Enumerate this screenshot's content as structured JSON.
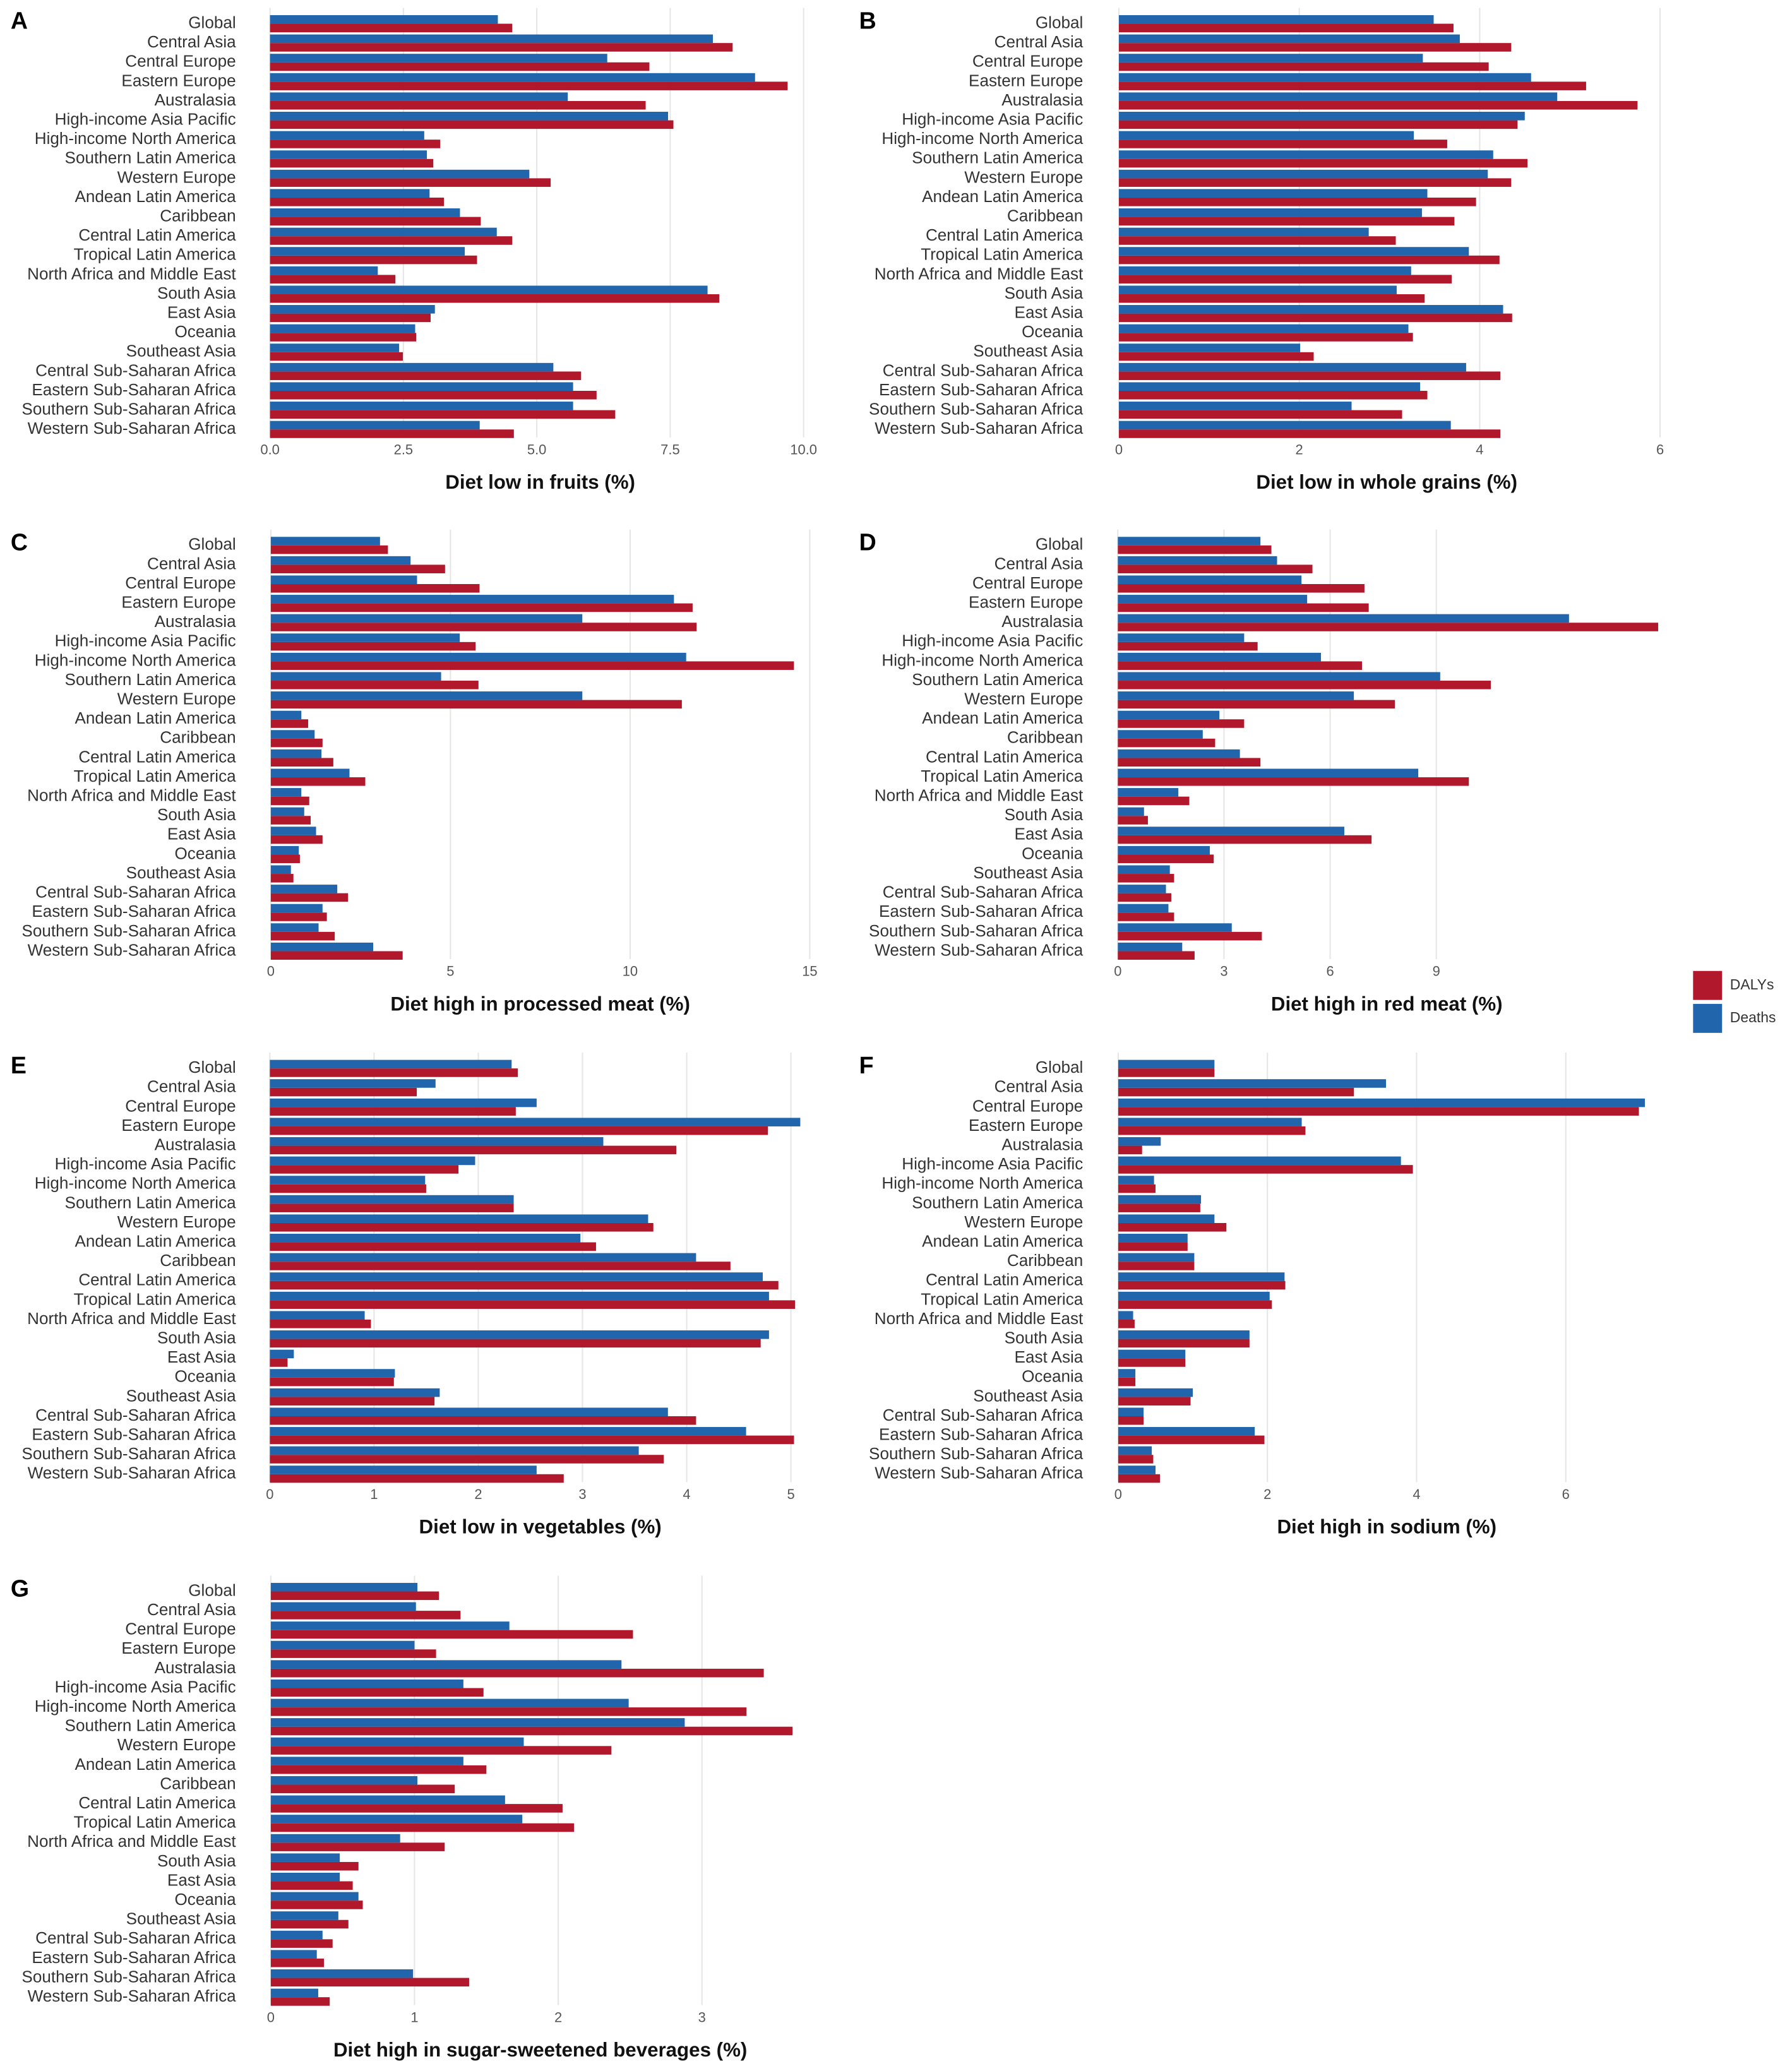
{
  "chart_data": [
    {
      "type": "bar",
      "orientation": "horizontal",
      "panel_label": "A",
      "xlabel": "Diet low in fruits (%)",
      "categories": [
        "Global",
        "Central Asia",
        "Central Europe",
        "Eastern Europe",
        "Australasia",
        "High-income Asia Pacific",
        "High-income North America",
        "Southern Latin America",
        "Western Europe",
        "Andean Latin America",
        "Caribbean",
        "Central Latin America",
        "Tropical Latin America",
        "North Africa and Middle East",
        "South Asia",
        "East Asia",
        "Oceania",
        "Southeast Asia",
        "Central Sub-Saharan Africa",
        "Eastern Sub-Saharan Africa",
        "Southern Sub-Saharan Africa",
        "Western Sub-Saharan Africa"
      ],
      "series": [
        {
          "name": "DALYs",
          "color": "#b2182b",
          "values": [
            4.54,
            8.67,
            7.11,
            9.7,
            7.04,
            7.56,
            3.19,
            3.06,
            5.26,
            3.26,
            3.95,
            4.54,
            3.88,
            2.35,
            8.42,
            3.01,
            2.74,
            2.49,
            5.83,
            6.12,
            6.47,
            4.57
          ]
        },
        {
          "name": "Deaths",
          "color": "#2166ac",
          "values": [
            4.27,
            8.3,
            6.32,
            9.09,
            5.58,
            7.46,
            2.89,
            2.94,
            4.86,
            2.99,
            3.56,
            4.25,
            3.65,
            2.02,
            8.2,
            3.09,
            2.72,
            2.42,
            5.31,
            5.68,
            5.68,
            3.93
          ]
        }
      ],
      "xlim": [
        -0.12,
        10.25
      ],
      "xticks": [
        {
          "value": 0,
          "label": "0.0"
        },
        2.5,
        {
          "value": 5,
          "label": "5.0"
        },
        7.5,
        {
          "value": 10,
          "label": "10.0"
        }
      ],
      "grid": true
    },
    {
      "type": "bar",
      "orientation": "horizontal",
      "panel_label": "B",
      "xlabel": "Diet low in whole grains (%)",
      "categories": [
        "Global",
        "Central Asia",
        "Central Europe",
        "Eastern Europe",
        "Australasia",
        "High-income Asia Pacific",
        "High-income North America",
        "Southern Latin America",
        "Western Europe",
        "Andean Latin America",
        "Caribbean",
        "Central Latin America",
        "Tropical Latin America",
        "North Africa and Middle East",
        "South Asia",
        "East Asia",
        "Oceania",
        "Southeast Asia",
        "Central Sub-Saharan Africa",
        "Eastern Sub-Saharan Africa",
        "Southern Sub-Saharan Africa",
        "Western Sub-Saharan Africa"
      ],
      "series": [
        {
          "name": "DALYs",
          "color": "#b2182b",
          "values": [
            3.71,
            4.35,
            4.1,
            5.18,
            5.75,
            4.42,
            3.64,
            4.53,
            4.35,
            3.96,
            3.72,
            3.07,
            4.22,
            3.69,
            3.39,
            4.36,
            3.26,
            2.16,
            4.23,
            3.42,
            3.14,
            4.23
          ]
        },
        {
          "name": "Deaths",
          "color": "#2166ac",
          "values": [
            3.49,
            3.78,
            3.37,
            4.57,
            4.86,
            4.5,
            3.27,
            4.15,
            4.09,
            3.42,
            3.36,
            2.77,
            3.88,
            3.24,
            3.08,
            4.26,
            3.21,
            2.01,
            3.85,
            3.34,
            2.58,
            3.68
          ]
        }
      ],
      "xlim": [
        -0.09,
        6.03
      ],
      "xticks": [
        0,
        2,
        4,
        6
      ],
      "grid": true
    },
    {
      "type": "bar",
      "orientation": "horizontal",
      "panel_label": "C",
      "xlabel": "Diet high in processed meat (%)",
      "categories": [
        "Global",
        "Central Asia",
        "Central Europe",
        "Eastern Europe",
        "Australasia",
        "High-income Asia Pacific",
        "High-income North America",
        "Southern Latin America",
        "Western Europe",
        "Andean Latin America",
        "Caribbean",
        "Central Latin America",
        "Tropical Latin America",
        "North Africa and Middle East",
        "South Asia",
        "East Asia",
        "Oceania",
        "Southeast Asia",
        "Central Sub-Saharan Africa",
        "Eastern Sub-Saharan Africa",
        "Southern Sub-Saharan Africa",
        "Western Sub-Saharan Africa"
      ],
      "series": [
        {
          "name": "DALYs",
          "color": "#b2182b",
          "values": [
            3.26,
            4.85,
            5.81,
            11.74,
            11.85,
            5.7,
            14.56,
            5.78,
            11.44,
            1.04,
            1.44,
            1.74,
            2.63,
            1.07,
            1.11,
            1.44,
            0.81,
            0.63,
            2.15,
            1.56,
            1.78,
            3.67
          ]
        },
        {
          "name": "Deaths",
          "color": "#2166ac",
          "values": [
            3.04,
            3.89,
            4.07,
            11.22,
            8.67,
            5.26,
            11.56,
            4.74,
            8.67,
            0.85,
            1.22,
            1.41,
            2.19,
            0.85,
            0.93,
            1.26,
            0.78,
            0.56,
            1.85,
            1.44,
            1.33,
            2.85
          ]
        }
      ],
      "xlim": [
        -0.2,
        15.2
      ],
      "xticks": [
        0,
        5,
        10,
        15
      ],
      "grid": true
    },
    {
      "type": "bar",
      "orientation": "horizontal",
      "panel_label": "D",
      "xlabel": "Diet high in red meat (%)",
      "categories": [
        "Global",
        "Central Asia",
        "Central Europe",
        "Eastern Europe",
        "Australasia",
        "High-income Asia Pacific",
        "High-income North America",
        "Southern Latin America",
        "Western Europe",
        "Andean Latin America",
        "Caribbean",
        "Central Latin America",
        "Tropical Latin America",
        "North Africa and Middle East",
        "South Asia",
        "East Asia",
        "Oceania",
        "Southeast Asia",
        "Central Sub-Saharan Africa",
        "Eastern Sub-Saharan Africa",
        "Southern Sub-Saharan Africa",
        "Western Sub-Saharan Africa"
      ],
      "series": [
        {
          "name": "DALYs",
          "color": "#b2182b",
          "values": [
            4.34,
            5.5,
            6.97,
            7.09,
            15.27,
            3.95,
            6.9,
            10.54,
            7.83,
            3.57,
            2.75,
            4.03,
            9.92,
            2.02,
            0.85,
            7.17,
            2.71,
            1.59,
            1.51,
            1.59,
            4.07,
            2.17
          ]
        },
        {
          "name": "Deaths",
          "color": "#2166ac",
          "values": [
            4.03,
            4.5,
            5.19,
            5.35,
            12.75,
            3.57,
            5.74,
            9.11,
            6.67,
            2.87,
            2.4,
            3.45,
            8.49,
            1.71,
            0.74,
            6.4,
            2.6,
            1.47,
            1.36,
            1.43,
            3.22,
            1.82
          ]
        }
      ],
      "xlim": [
        -0.2,
        15.4
      ],
      "xticks": [
        0,
        3,
        6,
        9
      ],
      "grid": true
    },
    {
      "type": "bar",
      "orientation": "horizontal",
      "panel_label": "E",
      "xlabel": "Diet low in vegetables (%)",
      "categories": [
        "Global",
        "Central Asia",
        "Central Europe",
        "Eastern Europe",
        "Australasia",
        "High-income Asia Pacific",
        "High-income North America",
        "Southern Latin America",
        "Western Europe",
        "Andean Latin America",
        "Caribbean",
        "Central Latin America",
        "Tropical Latin America",
        "North Africa and Middle East",
        "South Asia",
        "East Asia",
        "Oceania",
        "Southeast Asia",
        "Central Sub-Saharan Africa",
        "Eastern Sub-Saharan Africa",
        "Southern Sub-Saharan Africa",
        "Western Sub-Saharan Africa"
      ],
      "series": [
        {
          "name": "DALYs",
          "color": "#b2182b",
          "values": [
            2.38,
            1.41,
            2.36,
            4.78,
            3.9,
            1.81,
            1.5,
            2.34,
            3.68,
            3.13,
            4.42,
            4.88,
            5.04,
            0.97,
            4.71,
            0.17,
            1.19,
            1.58,
            4.09,
            5.03,
            3.78,
            2.82
          ]
        },
        {
          "name": "Deaths",
          "color": "#2166ac",
          "values": [
            2.32,
            1.59,
            2.56,
            5.09,
            3.2,
            1.97,
            1.49,
            2.34,
            3.63,
            2.98,
            4.09,
            4.73,
            4.79,
            0.91,
            4.79,
            0.23,
            1.2,
            1.63,
            3.82,
            4.57,
            3.54,
            2.56
          ]
        }
      ],
      "xlim": [
        -0.06,
        5.25
      ],
      "xticks": [
        0,
        1,
        2,
        3,
        4,
        5
      ],
      "grid": true
    },
    {
      "type": "bar",
      "orientation": "horizontal",
      "panel_label": "F",
      "xlabel": "Diet high in sodium (%)",
      "categories": [
        "Global",
        "Central Asia",
        "Central Europe",
        "Eastern Europe",
        "Australasia",
        "High-income Asia Pacific",
        "High-income North America",
        "Southern Latin America",
        "Western Europe",
        "Andean Latin America",
        "Caribbean",
        "Central Latin America",
        "Tropical Latin America",
        "North Africa and Middle East",
        "South Asia",
        "East Asia",
        "Oceania",
        "Southeast Asia",
        "Central Sub-Saharan Africa",
        "Eastern Sub-Saharan Africa",
        "Southern Sub-Saharan Africa",
        "Western Sub-Saharan Africa"
      ],
      "series": [
        {
          "name": "DALYs",
          "color": "#b2182b",
          "values": [
            1.29,
            3.16,
            6.98,
            2.51,
            0.32,
            3.95,
            0.5,
            1.1,
            1.45,
            0.93,
            1.02,
            2.24,
            2.06,
            0.22,
            1.76,
            0.9,
            0.23,
            0.97,
            0.34,
            1.96,
            0.47,
            0.56
          ]
        },
        {
          "name": "Deaths",
          "color": "#2166ac",
          "values": [
            1.29,
            3.59,
            7.06,
            2.46,
            0.57,
            3.79,
            0.48,
            1.11,
            1.29,
            0.93,
            1.02,
            2.23,
            2.03,
            0.2,
            1.76,
            0.9,
            0.23,
            1.0,
            0.34,
            1.83,
            0.45,
            0.5
          ]
        }
      ],
      "xlim": [
        -0.1,
        7.3
      ],
      "xticks": [
        0,
        2,
        4,
        6
      ],
      "grid": true
    },
    {
      "type": "bar",
      "orientation": "horizontal",
      "panel_label": "G",
      "xlabel": "Diet high in sugar-sweetened beverages (%)",
      "categories": [
        "Global",
        "Central Asia",
        "Central Europe",
        "Eastern Europe",
        "Australasia",
        "High-income Asia Pacific",
        "High-income North America",
        "Southern Latin America",
        "Western Europe",
        "Andean Latin America",
        "Caribbean",
        "Central Latin America",
        "Tropical Latin America",
        "North Africa and Middle East",
        "South Asia",
        "East Asia",
        "Oceania",
        "Southeast Asia",
        "Central Sub-Saharan Africa",
        "Eastern Sub-Saharan Africa",
        "Southern Sub-Saharan Africa",
        "Western Sub-Saharan Africa"
      ],
      "series": [
        {
          "name": "DALYs",
          "color": "#b2182b",
          "values": [
            1.17,
            1.32,
            2.52,
            1.15,
            3.43,
            1.48,
            3.31,
            3.63,
            2.37,
            1.5,
            1.28,
            2.03,
            2.11,
            1.21,
            0.61,
            0.57,
            0.64,
            0.54,
            0.43,
            0.37,
            1.38,
            0.41
          ]
        },
        {
          "name": "Deaths",
          "color": "#2166ac",
          "values": [
            1.02,
            1.01,
            1.66,
            1.0,
            2.44,
            1.34,
            2.49,
            2.88,
            1.76,
            1.34,
            1.02,
            1.63,
            1.75,
            0.9,
            0.48,
            0.48,
            0.61,
            0.47,
            0.36,
            0.32,
            0.99,
            0.33
          ]
        }
      ],
      "xlim": [
        -0.05,
        3.8
      ],
      "xticks": [
        0,
        1,
        2,
        3
      ],
      "grid": true
    }
  ]
}
